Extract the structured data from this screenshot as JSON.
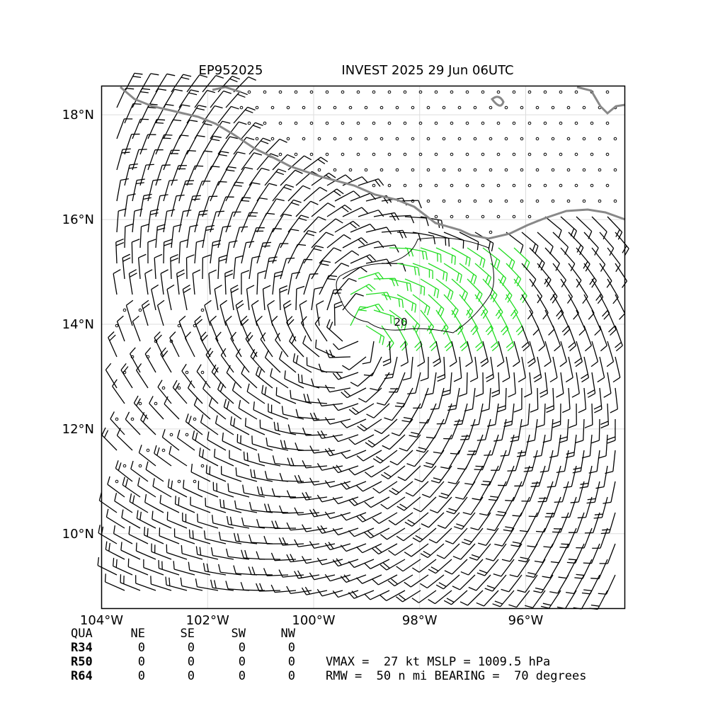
{
  "header": {
    "storm_id": "EP952025",
    "title": "INVEST 2025 29 Jun 06UTC"
  },
  "map": {
    "xlim": [
      -104,
      -94.13
    ],
    "ylim": [
      8.57,
      18.55
    ],
    "xticks": [
      {
        "value": -104,
        "label": "104°W"
      },
      {
        "value": -102,
        "label": "102°W"
      },
      {
        "value": -100,
        "label": "100°W"
      },
      {
        "value": -98,
        "label": "98°W"
      },
      {
        "value": -96,
        "label": "96°W"
      }
    ],
    "yticks": [
      {
        "value": 10,
        "label": "10°N"
      },
      {
        "value": 12,
        "label": "12°N"
      },
      {
        "value": 14,
        "label": "14°N"
      },
      {
        "value": 16,
        "label": "16°N"
      },
      {
        "value": 18,
        "label": "18°N"
      }
    ],
    "contour_label": "20"
  },
  "table": {
    "columns": [
      "QUA",
      "NE",
      "SE",
      "SW",
      "NW"
    ],
    "rows": [
      [
        "R34",
        0,
        0,
        0,
        0
      ],
      [
        "R50",
        0,
        0,
        0,
        0
      ],
      [
        "R64",
        0,
        0,
        0,
        0
      ]
    ]
  },
  "stats": [
    "VMAX =  27 kt MSLP = 1009.5 hPa",
    "RMW =  50 n mi BEARING =  70 degrees"
  ]
}
